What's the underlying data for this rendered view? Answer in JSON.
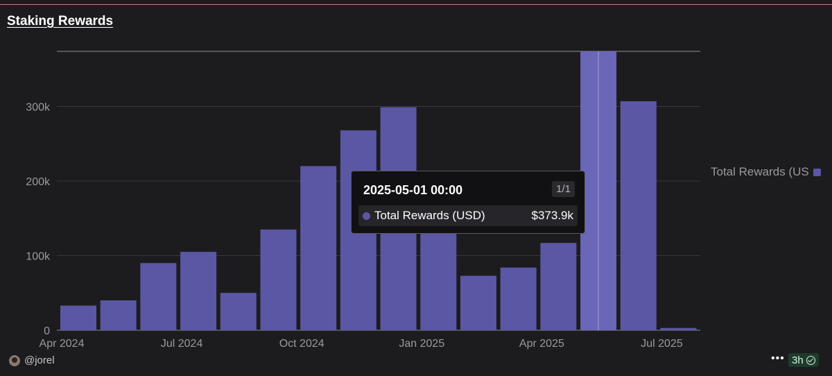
{
  "title": "Staking Rewards",
  "chart_data": {
    "type": "bar",
    "x": [
      "2024-04-01",
      "2024-05-01",
      "2024-06-01",
      "2024-07-01",
      "2024-08-01",
      "2024-09-01",
      "2024-10-01",
      "2024-11-01",
      "2024-12-01",
      "2025-01-01",
      "2025-02-01",
      "2025-03-01",
      "2025-04-01",
      "2025-05-01",
      "2025-06-01",
      "2025-07-01"
    ],
    "values": [
      33000,
      40000,
      90000,
      105000,
      50000,
      135000,
      220000,
      268000,
      299000,
      130000,
      73000,
      84000,
      117000,
      373900,
      307000,
      3000
    ],
    "x_tick_labels": [
      "Apr 2024",
      "Jul 2024",
      "Oct 2024",
      "Jan 2025",
      "Apr 2025",
      "Jul 2025"
    ],
    "y_tick_labels": [
      "0",
      "100k",
      "200k",
      "300k"
    ],
    "y_ticks": [
      0,
      100000,
      200000,
      300000
    ],
    "ylim": [
      0,
      373900
    ],
    "grid": true,
    "legend": {
      "label": "Total Rewards (US",
      "placement": "right"
    },
    "series": [
      {
        "name": "Total Rewards (USD)",
        "color": "#5b57a4"
      }
    ]
  },
  "tooltip": {
    "header": "2025-05-01 00:00",
    "count": "1/1",
    "label": "Total Rewards (USD)",
    "value": "$373.9k"
  },
  "footer": {
    "user": "@jorel",
    "more_icon": "more-icon",
    "freshness": "3h"
  },
  "colors": {
    "bar": "#5b57a4",
    "bar_highlight": "#6a66b8",
    "grid": "#3a3a3e",
    "axis_text": "#9a9aa0",
    "background": "#1c1c1e"
  }
}
